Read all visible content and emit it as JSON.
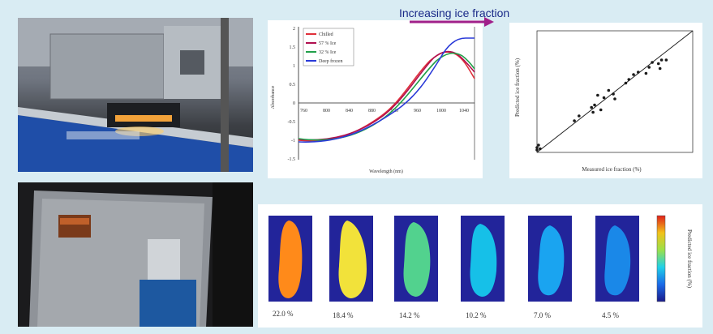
{
  "banner": {
    "label": "Increasing ice fraction",
    "arrow_color": "#a0208a"
  },
  "spectra": {
    "legend": [
      "Chilled",
      "57 % Ice",
      "32 % Ice",
      "Deep frozen"
    ],
    "colors": [
      "#e0303a",
      "#b01050",
      "#22a04a",
      "#2a3ad8"
    ],
    "y_ticks": [
      "2",
      "1.5",
      "1",
      "0.5",
      "0",
      "-0.5",
      "-1",
      "-1.5"
    ],
    "x_ticks": [
      "760",
      "800",
      "840",
      "880",
      "920",
      "960",
      "1000",
      "1040"
    ],
    "xlabel": "Wavelength (nm)",
    "ylabel": "Absorbance"
  },
  "chart_data": {
    "type": "scatter",
    "xlabel": "Measured ice fraction (%)",
    "ylabel": "Predicted ice fraction (%)",
    "xlim": [
      0,
      100
    ],
    "ylim": [
      0,
      100
    ],
    "points": [
      [
        0,
        2
      ],
      [
        0,
        4
      ],
      [
        1,
        6
      ],
      [
        2,
        3
      ],
      [
        24,
        26
      ],
      [
        27,
        30
      ],
      [
        35,
        37
      ],
      [
        37,
        39
      ],
      [
        36,
        33
      ],
      [
        39,
        47
      ],
      [
        41,
        35
      ],
      [
        43,
        45
      ],
      [
        46,
        51
      ],
      [
        49,
        48
      ],
      [
        50,
        44
      ],
      [
        57,
        57
      ],
      [
        59,
        60
      ],
      [
        62,
        64
      ],
      [
        65,
        66
      ],
      [
        70,
        65
      ],
      [
        72,
        70
      ],
      [
        74,
        74
      ],
      [
        78,
        73
      ],
      [
        79,
        69
      ],
      [
        80,
        76
      ],
      [
        83,
        76
      ]
    ],
    "fit_line": [
      [
        0,
        0
      ],
      [
        100,
        100
      ]
    ]
  },
  "ice_maps": {
    "labels": [
      "22.0 %",
      "18.4 %",
      "14.2 %",
      "10.2 %",
      "7.0 %",
      "4.5 %"
    ],
    "fill_colors": [
      "#ff8a1a",
      "#f2e23a",
      "#52d28e",
      "#16c0e8",
      "#1aa4f0",
      "#1a88e8"
    ],
    "colorbar_label": "Predicted ice fraction (%)"
  }
}
